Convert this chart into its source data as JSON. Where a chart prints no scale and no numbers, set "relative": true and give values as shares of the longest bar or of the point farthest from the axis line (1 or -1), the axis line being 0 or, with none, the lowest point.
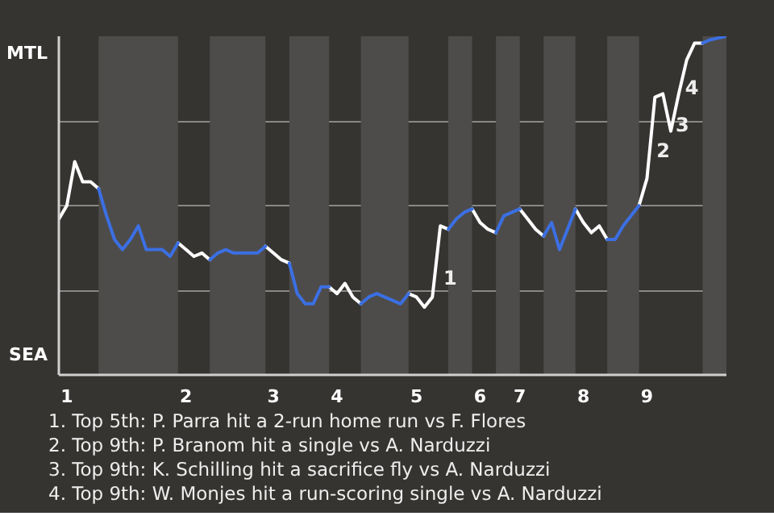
{
  "chart_data": {
    "type": "line",
    "relative": true,
    "categories": [
      null,
      "1",
      null,
      null,
      null,
      null,
      null,
      null,
      null,
      null,
      null,
      null,
      null,
      null,
      null,
      null,
      "2",
      null,
      null,
      null,
      null,
      null,
      null,
      null,
      null,
      null,
      null,
      "3",
      null,
      null,
      null,
      null,
      null,
      null,
      null,
      "4",
      null,
      null,
      null,
      null,
      null,
      null,
      null,
      null,
      null,
      "5",
      null,
      null,
      null,
      null,
      null,
      null,
      null,
      "6",
      null,
      null,
      null,
      null,
      "7",
      null,
      null,
      null,
      null,
      null,
      null,
      null,
      "8",
      null,
      null,
      null,
      null,
      null,
      null,
      null,
      "9",
      null,
      null,
      null,
      null,
      null,
      null,
      null,
      null,
      null,
      null
    ],
    "grid": "y",
    "series": [
      {
        "color": "#ffffff",
        "values": [
          0.46,
          0.5,
          0.63,
          0.57,
          0.57,
          0.55,
          null,
          null,
          null,
          null,
          null,
          null,
          null,
          null,
          null,
          0.39,
          0.37,
          0.35,
          0.36,
          0.34,
          null,
          null,
          null,
          null,
          null,
          null,
          0.38,
          0.36,
          0.34,
          0.33,
          null,
          null,
          null,
          null,
          0.26,
          0.24,
          0.27,
          0.23,
          0.21,
          null,
          null,
          null,
          null,
          null,
          0.24,
          0.23,
          0.2,
          0.23,
          0.44,
          0.43,
          null,
          null,
          0.49,
          0.45,
          0.43,
          0.42,
          null,
          null,
          0.49,
          0.46,
          0.43,
          0.41,
          null,
          null,
          null,
          0.49,
          0.45,
          0.42,
          0.44,
          0.4,
          null,
          null,
          null,
          0.5,
          0.58,
          0.82,
          0.83,
          0.72,
          0.83,
          0.93,
          0.98,
          0.98,
          null,
          null,
          null
        ]
      },
      {
        "color": "#3b6fe3",
        "values": [
          null,
          null,
          null,
          null,
          null,
          0.55,
          0.47,
          0.4,
          0.37,
          0.4,
          0.44,
          0.37,
          0.37,
          0.37,
          0.35,
          0.39,
          null,
          null,
          null,
          0.34,
          0.36,
          0.37,
          0.36,
          0.36,
          0.36,
          0.36,
          0.38,
          null,
          null,
          0.33,
          0.24,
          0.21,
          0.21,
          0.26,
          0.26,
          null,
          null,
          null,
          0.21,
          0.23,
          0.24,
          0.23,
          0.22,
          0.21,
          0.24,
          null,
          null,
          null,
          null,
          0.43,
          0.46,
          0.48,
          0.49,
          null,
          null,
          0.42,
          0.47,
          0.48,
          0.49,
          null,
          null,
          0.41,
          0.45,
          0.37,
          0.43,
          0.49,
          null,
          null,
          null,
          0.4,
          0.4,
          0.44,
          0.47,
          0.5,
          null,
          null,
          null,
          null,
          null,
          null,
          null,
          0.98,
          0.99,
          0.995,
          1
        ]
      }
    ],
    "annotations": [
      "MTL",
      "SEA",
      "1",
      "2",
      "3",
      "4",
      "1. Top 5th: P. Parra hit a 2-run home run vs F. Flores",
      "2. Top 9th: P. Branom hit a single vs A. Narduzzi",
      "3. Top 9th: K. Schilling hit a sacrifice fly vs A. Narduzzi",
      "4. Top 9th: W. Monjes hit a run-scoring single vs A. Narduzzi"
    ]
  }
}
